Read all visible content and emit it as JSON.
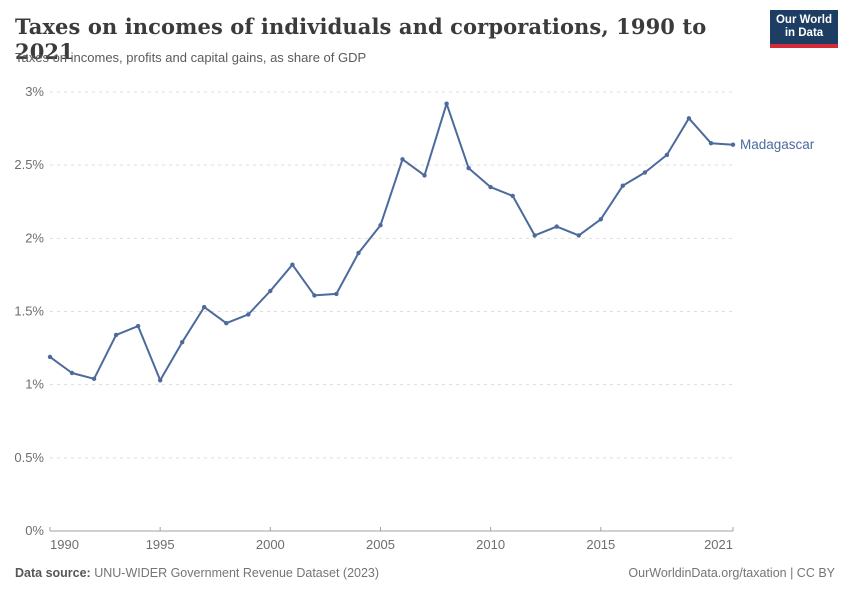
{
  "header": {
    "title": "Taxes on incomes of individuals and corporations, 1990 to 2021",
    "subtitle": "Taxes on incomes, profits and capital gains, as share of GDP",
    "logo_line1": "Our World",
    "logo_line2": "in Data",
    "logo_bg_color": "#1d3d63",
    "logo_bar_color": "#d42b3a"
  },
  "chart_data": {
    "type": "line",
    "title": "Taxes on incomes of individuals and corporations, 1990 to 2021",
    "subtitle": "Taxes on incomes, profits and capital gains, as share of GDP",
    "xlabel": "",
    "ylabel": "",
    "xlim": [
      1990,
      2021
    ],
    "ylim": [
      0,
      3
    ],
    "grid": "horizontal-dashed",
    "legend_position": "end-of-line-label",
    "x": [
      1990,
      1991,
      1992,
      1993,
      1994,
      1995,
      1996,
      1997,
      1998,
      1999,
      2000,
      2001,
      2002,
      2003,
      2004,
      2005,
      2006,
      2007,
      2008,
      2009,
      2010,
      2011,
      2012,
      2013,
      2014,
      2015,
      2016,
      2017,
      2018,
      2019,
      2020,
      2021
    ],
    "series": [
      {
        "name": "Madagascar",
        "color": "#4C6A9C",
        "values": [
          1.19,
          1.08,
          1.04,
          1.34,
          1.4,
          1.03,
          1.29,
          1.53,
          1.42,
          1.48,
          1.64,
          1.82,
          1.61,
          1.62,
          1.9,
          2.09,
          2.54,
          2.43,
          2.92,
          2.48,
          2.35,
          2.29,
          2.02,
          2.08,
          2.02,
          2.13,
          2.36,
          2.45,
          2.57,
          2.82,
          2.65,
          2.64
        ]
      }
    ],
    "xticks": [
      {
        "value": 1990,
        "label": "1990"
      },
      {
        "value": 1995,
        "label": "1995"
      },
      {
        "value": 2000,
        "label": "2000"
      },
      {
        "value": 2005,
        "label": "2005"
      },
      {
        "value": 2010,
        "label": "2010"
      },
      {
        "value": 2015,
        "label": "2015"
      },
      {
        "value": 2021,
        "label": "2021"
      }
    ],
    "yticks": [
      {
        "value": 0,
        "label": "0%"
      },
      {
        "value": 0.5,
        "label": "0.5%"
      },
      {
        "value": 1,
        "label": "1%"
      },
      {
        "value": 1.5,
        "label": "1.5%"
      },
      {
        "value": 2,
        "label": "2%"
      },
      {
        "value": 2.5,
        "label": "2.5%"
      },
      {
        "value": 3,
        "label": "3%"
      }
    ],
    "colors": {
      "gridline": "#dddddd",
      "axis": "#a0a0a0",
      "tick_label": "#6e6e6e"
    }
  },
  "footer": {
    "source_label": "Data source:",
    "source_text": " UNU-WIDER Government Revenue Dataset (2023)",
    "credit": "OurWorldinData.org/taxation | CC BY"
  }
}
